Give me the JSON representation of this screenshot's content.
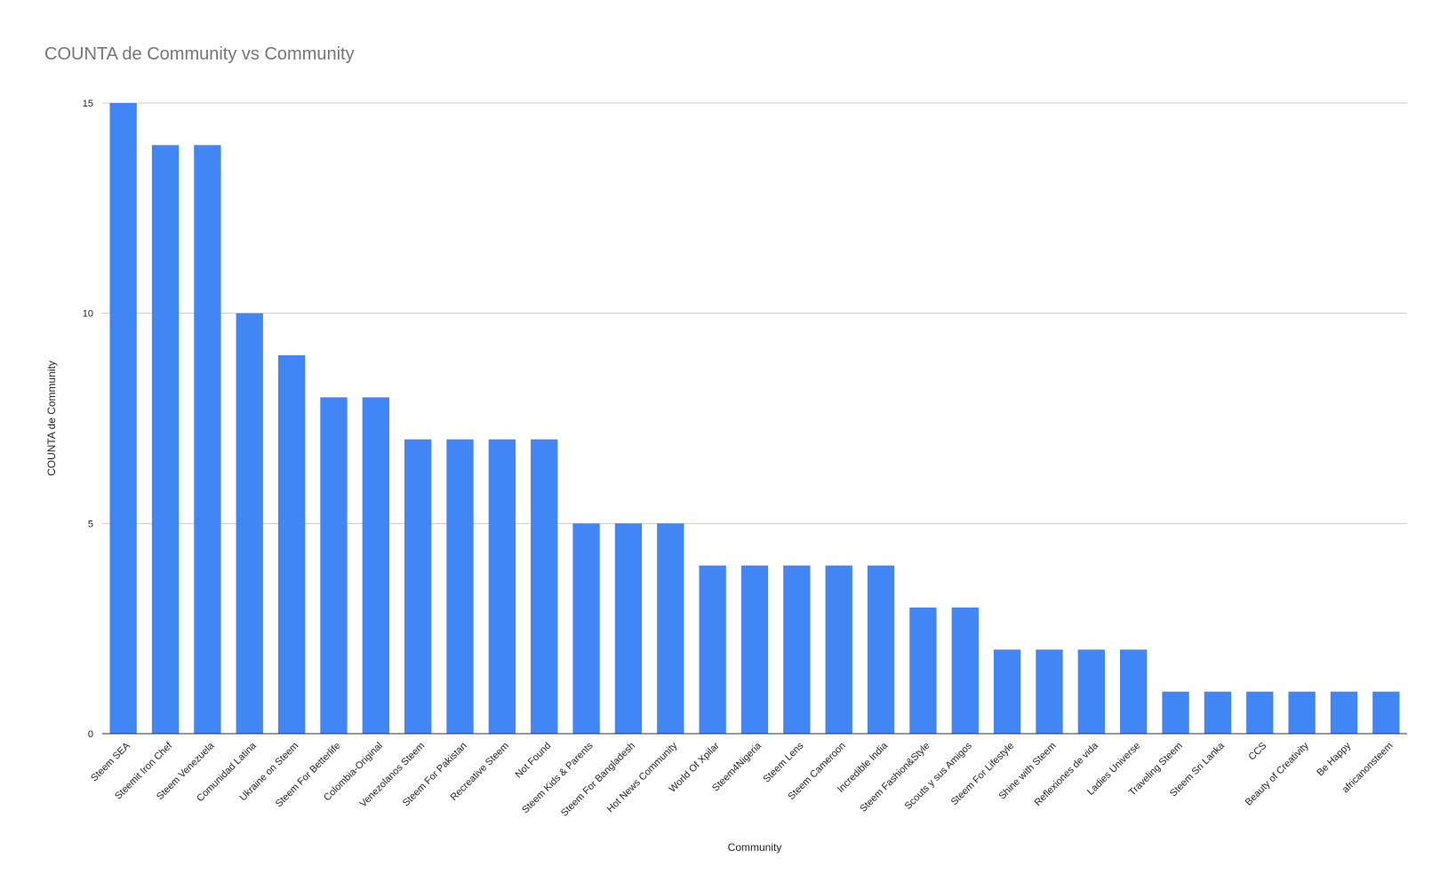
{
  "chart_data": {
    "type": "bar",
    "title": "COUNTA de Community vs Community",
    "xlabel": "Community",
    "ylabel": "COUNTA de Community",
    "ylim": [
      0,
      15
    ],
    "yticks": [
      0,
      5,
      10,
      15
    ],
    "grid": true,
    "legend": "none",
    "bar_color": "#4285f4",
    "categories": [
      "Steem SEA",
      "Steemit Iron Chef",
      "Steem Venezuela",
      "Comunidad Latina",
      "Ukraine on Steem",
      "Steem For Betterlife",
      "Colombia-Original",
      "Venezolanos Steem",
      "Steem For Pakistan",
      "Recreative Steem",
      "Not Found",
      "Steem Kids & Parents",
      "Steem For Bangladesh",
      "Hot News Community",
      "World Of Xpilar",
      "Steem4Nigeria",
      "Steem Lens",
      "Steem Cameroon",
      "Incredible India",
      "Steem Fashion&Style",
      "Scouts y sus Amigos",
      "Steem For Lifestyle",
      "Shine with Steem",
      "Reflexiones de vida",
      "Ladies Universe",
      "Traveling Steem",
      "Steem Sri Lanka",
      "CCS",
      "Beauty of Creativity",
      "Be Happy",
      "africanonsteem"
    ],
    "values": [
      15,
      14,
      14,
      10,
      9,
      8,
      8,
      7,
      7,
      7,
      7,
      5,
      5,
      5,
      4,
      4,
      4,
      4,
      4,
      3,
      3,
      2,
      2,
      2,
      2,
      1,
      1,
      1,
      1,
      1,
      1
    ]
  }
}
